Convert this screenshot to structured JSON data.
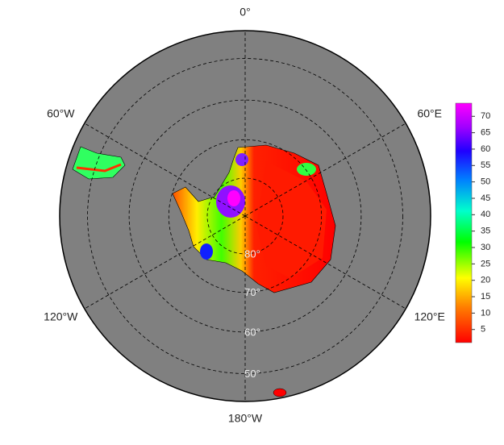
{
  "map": {
    "longitudes": [
      {
        "value": 0,
        "label": "0°"
      },
      {
        "value": 60,
        "label": "60°E"
      },
      {
        "value": 120,
        "label": "120°E"
      },
      {
        "value": 180,
        "label": "180°W"
      },
      {
        "value": -120,
        "label": "120°W"
      },
      {
        "value": -60,
        "label": "60°W"
      }
    ],
    "latitudes": [
      {
        "value": 80,
        "label": "80°"
      },
      {
        "value": 70,
        "label": "70°"
      },
      {
        "value": 60,
        "label": "60°"
      },
      {
        "value": 50,
        "label": "50°"
      }
    ],
    "colorbar": {
      "lim": [
        1,
        74
      ],
      "ticks": [
        5,
        10,
        15,
        20,
        25,
        30,
        35,
        40,
        45,
        50,
        55,
        60,
        65,
        70
      ]
    }
  }
}
